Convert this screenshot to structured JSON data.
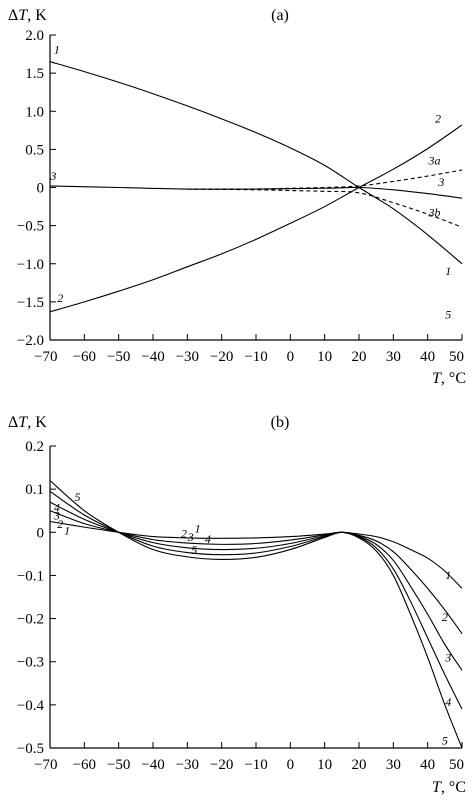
{
  "chart_data": [
    {
      "type": "line",
      "title": "(a)",
      "ylabel_delta": "Δ",
      "ylabel_var": "T",
      "ylabel_unit": ", K",
      "xlabel_var": "T",
      "xlabel_unit": ", °C",
      "xlim": [
        -70,
        50
      ],
      "ylim": [
        -2.0,
        2.0
      ],
      "xticks": [
        -70,
        -60,
        -50,
        -40,
        -30,
        -20,
        -10,
        0,
        10,
        20,
        30,
        40,
        50
      ],
      "yticks": [
        "2.0",
        "1.5",
        "1.0",
        "0.5",
        "0",
        "-0.5",
        "-1.0",
        "-1.5",
        "-2.0"
      ],
      "ytick_values": [
        2.0,
        1.5,
        1.0,
        0.5,
        0,
        -0.5,
        -1.0,
        -1.5,
        -2.0
      ],
      "series": [
        {
          "name": "1",
          "dashed": false,
          "x": [
            -70,
            -60,
            -50,
            -40,
            -30,
            -20,
            -10,
            0,
            10,
            20,
            30,
            40,
            50
          ],
          "y": [
            1.65,
            1.52,
            1.38,
            1.23,
            1.07,
            0.9,
            0.72,
            0.52,
            0.29,
            0.0,
            -0.28,
            -0.62,
            -1.0
          ]
        },
        {
          "name": "2",
          "dashed": false,
          "x": [
            -70,
            -60,
            -50,
            -40,
            -30,
            -20,
            -10,
            0,
            10,
            20,
            30,
            40,
            50
          ],
          "y": [
            -1.63,
            -1.5,
            -1.36,
            -1.21,
            -1.04,
            -0.87,
            -0.68,
            -0.47,
            -0.25,
            0.0,
            0.24,
            0.51,
            0.82
          ]
        },
        {
          "name": "3",
          "dashed": false,
          "x": [
            -70,
            -50,
            -30,
            -10,
            10,
            20,
            30,
            40,
            50
          ],
          "y": [
            0.02,
            0.0,
            -0.02,
            -0.02,
            -0.01,
            0.0,
            -0.03,
            -0.08,
            -0.14
          ]
        },
        {
          "name": "3a",
          "dashed": true,
          "x": [
            -30,
            -10,
            0,
            10,
            20,
            30,
            40,
            50
          ],
          "y": [
            -0.02,
            -0.02,
            -0.01,
            0.0,
            0.02,
            0.08,
            0.15,
            0.23
          ]
        },
        {
          "name": "3b",
          "dashed": true,
          "x": [
            -30,
            -10,
            0,
            10,
            20,
            30,
            40,
            50
          ],
          "y": [
            -0.02,
            -0.03,
            -0.04,
            -0.05,
            -0.07,
            -0.2,
            -0.35,
            -0.52
          ]
        }
      ],
      "series_labels": [
        {
          "text": "1",
          "x": -68,
          "y": 1.76
        },
        {
          "text": "2",
          "x": -67,
          "y": -1.5
        },
        {
          "text": "3",
          "x": -69,
          "y": 0.1
        },
        {
          "text": "1",
          "x": 46,
          "y": -1.15
        },
        {
          "text": "2",
          "x": 43,
          "y": 0.85
        },
        {
          "text": "3a",
          "x": 42,
          "y": 0.3
        },
        {
          "text": "3",
          "x": 44,
          "y": 0.02
        },
        {
          "text": "3b",
          "x": 42,
          "y": -0.38
        },
        {
          "text": "5",
          "x": 46,
          "y": -1.72
        }
      ]
    },
    {
      "type": "line",
      "title": "(b)",
      "ylabel_delta": "Δ",
      "ylabel_var": "T",
      "ylabel_unit": ", K",
      "xlabel_var": "T",
      "xlabel_unit": ", °C",
      "xlim": [
        -70,
        50
      ],
      "ylim": [
        -0.5,
        0.2
      ],
      "xticks": [
        -70,
        -60,
        -50,
        -40,
        -30,
        -20,
        -10,
        0,
        10,
        20,
        30,
        40,
        50
      ],
      "yticks": [
        "0.2",
        "0.1",
        "0",
        "-0.1",
        "-0.2",
        "-0.3",
        "-0.4",
        "-0.5"
      ],
      "ytick_values": [
        0.2,
        0.1,
        0,
        -0.1,
        -0.2,
        -0.3,
        -0.4,
        -0.5
      ],
      "series": [
        {
          "name": "1",
          "dashed": false,
          "x": [
            -70,
            -60,
            -50,
            -40,
            -30,
            -20,
            -10,
            0,
            10,
            15,
            20,
            25,
            30,
            35,
            40,
            45,
            50
          ],
          "y": [
            0.025,
            0.012,
            0.0,
            -0.01,
            -0.013,
            -0.014,
            -0.013,
            -0.01,
            -0.004,
            0.0,
            -0.004,
            -0.01,
            -0.022,
            -0.04,
            -0.06,
            -0.09,
            -0.13
          ]
        },
        {
          "name": "2",
          "dashed": false,
          "x": [
            -70,
            -60,
            -50,
            -40,
            -30,
            -20,
            -10,
            0,
            10,
            15,
            20,
            25,
            30,
            35,
            40,
            45,
            50
          ],
          "y": [
            0.05,
            0.02,
            0.0,
            -0.017,
            -0.025,
            -0.028,
            -0.026,
            -0.018,
            -0.006,
            0.0,
            -0.007,
            -0.02,
            -0.045,
            -0.085,
            -0.13,
            -0.18,
            -0.235
          ]
        },
        {
          "name": "3",
          "dashed": false,
          "x": [
            -70,
            -60,
            -50,
            -40,
            -30,
            -20,
            -10,
            0,
            10,
            15,
            20,
            25,
            30,
            35,
            40,
            45,
            50
          ],
          "y": [
            0.07,
            0.03,
            0.0,
            -0.024,
            -0.036,
            -0.04,
            -0.037,
            -0.026,
            -0.008,
            0.0,
            -0.009,
            -0.028,
            -0.065,
            -0.125,
            -0.19,
            -0.26,
            -0.32
          ]
        },
        {
          "name": "4",
          "dashed": false,
          "x": [
            -70,
            -60,
            -50,
            -40,
            -30,
            -20,
            -10,
            0,
            10,
            15,
            20,
            25,
            30,
            35,
            40,
            45,
            50
          ],
          "y": [
            0.095,
            0.04,
            0.0,
            -0.032,
            -0.047,
            -0.052,
            -0.048,
            -0.033,
            -0.01,
            0.0,
            -0.011,
            -0.036,
            -0.085,
            -0.16,
            -0.245,
            -0.33,
            -0.41
          ]
        },
        {
          "name": "5",
          "dashed": false,
          "x": [
            -70,
            -60,
            -50,
            -40,
            -30,
            -20,
            -10,
            0,
            10,
            15,
            20,
            25,
            30,
            35,
            40,
            45,
            50
          ],
          "y": [
            0.12,
            0.05,
            0.0,
            -0.04,
            -0.057,
            -0.063,
            -0.058,
            -0.04,
            -0.012,
            0.0,
            -0.013,
            -0.043,
            -0.1,
            -0.19,
            -0.29,
            -0.4,
            -0.5
          ]
        }
      ],
      "series_labels": [
        {
          "text": "1",
          "x": -65,
          "y": -0.005
        },
        {
          "text": "2",
          "x": -67,
          "y": 0.01
        },
        {
          "text": "3",
          "x": -68,
          "y": 0.03
        },
        {
          "text": "4",
          "x": -68,
          "y": 0.048
        },
        {
          "text": "5",
          "x": -62,
          "y": 0.072
        },
        {
          "text": "1",
          "x": -27,
          "y": 0.0
        },
        {
          "text": "2",
          "x": -31,
          "y": -0.012
        },
        {
          "text": "3",
          "x": -29,
          "y": -0.02
        },
        {
          "text": "4",
          "x": -24,
          "y": -0.025
        },
        {
          "text": "5",
          "x": -28,
          "y": -0.05
        },
        {
          "text": "1",
          "x": 46,
          "y": -0.108
        },
        {
          "text": "2",
          "x": 45,
          "y": -0.206
        },
        {
          "text": "3",
          "x": 46,
          "y": -0.3
        },
        {
          "text": "4",
          "x": 46,
          "y": -0.403
        },
        {
          "text": "5",
          "x": 45,
          "y": -0.492
        }
      ]
    }
  ]
}
